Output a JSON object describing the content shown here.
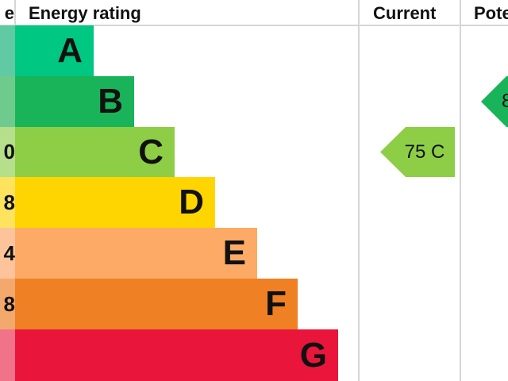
{
  "chart_data": {
    "type": "bar",
    "title": "",
    "headers": {
      "score": "e",
      "rating": "Energy rating",
      "current": "Current",
      "potential": "Pote"
    },
    "bands": [
      {
        "letter": "A",
        "score": "",
        "color": "#00c781",
        "light": "#5fcaa4"
      },
      {
        "letter": "B",
        "score": "",
        "color": "#19b459",
        "light": "#6ecb8e"
      },
      {
        "letter": "C",
        "score": "0",
        "color": "#8dce46",
        "light": "#b5df8a"
      },
      {
        "letter": "D",
        "score": "8",
        "color": "#ffd500",
        "light": "#ffe25e"
      },
      {
        "letter": "E",
        "score": "4",
        "color": "#fcaa65",
        "light": "#fdc49c"
      },
      {
        "letter": "F",
        "score": "8",
        "color": "#ef8023",
        "light": "#f3a86c"
      },
      {
        "letter": "G",
        "score": "",
        "color": "#e9153b",
        "light": "#f0738a"
      }
    ],
    "current": {
      "value": 75,
      "band": "C",
      "label": "75 C",
      "color": "#8dce46"
    },
    "potential": {
      "band": "B",
      "label": "8",
      "color": "#19b459"
    }
  }
}
